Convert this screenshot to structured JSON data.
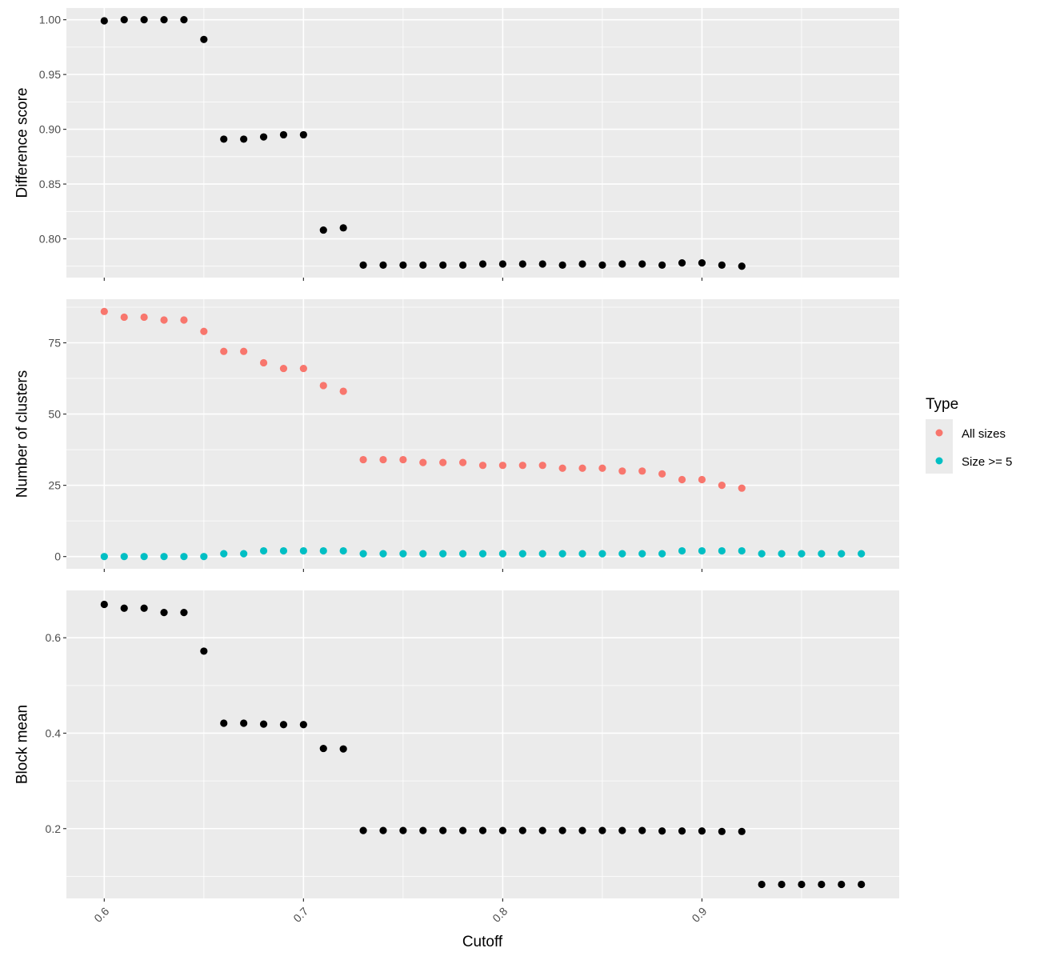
{
  "chart_data": {
    "type": "scatter",
    "xlabel": "Cutoff",
    "x_ticks": [
      "0.6",
      "0.7",
      "0.8",
      "0.9"
    ],
    "legend": {
      "title": "Type",
      "placement": "right",
      "entries": [
        {
          "label": "All sizes",
          "color": "#F8766D"
        },
        {
          "label": "Size >= 5",
          "color": "#00BFC4"
        }
      ]
    },
    "panels": [
      {
        "ylabel": "Difference score",
        "y_ticks": [
          "0.80",
          "0.85",
          "0.90",
          "0.95",
          "1.00"
        ],
        "series": [
          {
            "color": "#000000",
            "x": [
              0.6,
              0.61,
              0.62,
              0.63,
              0.64,
              0.65,
              0.66,
              0.67,
              0.68,
              0.69,
              0.7,
              0.71,
              0.72,
              0.73,
              0.74,
              0.75,
              0.76,
              0.77,
              0.78,
              0.79,
              0.8,
              0.81,
              0.82,
              0.83,
              0.84,
              0.85,
              0.86,
              0.87,
              0.88,
              0.89,
              0.9,
              0.91,
              0.92
            ],
            "y": [
              0.999,
              1.0,
              1.0,
              1.0,
              1.0,
              0.982,
              0.891,
              0.891,
              0.893,
              0.895,
              0.895,
              0.808,
              0.81,
              0.776,
              0.776,
              0.776,
              0.776,
              0.776,
              0.776,
              0.777,
              0.777,
              0.777,
              0.777,
              0.776,
              0.777,
              0.776,
              0.777,
              0.777,
              0.776,
              0.778,
              0.778,
              0.776,
              0.775
            ]
          }
        ]
      },
      {
        "ylabel": "Number of clusters",
        "y_ticks": [
          "0",
          "25",
          "50",
          "75"
        ],
        "series": [
          {
            "name": "All sizes",
            "color": "#F8766D",
            "x": [
              0.6,
              0.61,
              0.62,
              0.63,
              0.64,
              0.65,
              0.66,
              0.67,
              0.68,
              0.69,
              0.7,
              0.71,
              0.72,
              0.73,
              0.74,
              0.75,
              0.76,
              0.77,
              0.78,
              0.79,
              0.8,
              0.81,
              0.82,
              0.83,
              0.84,
              0.85,
              0.86,
              0.87,
              0.88,
              0.89,
              0.9,
              0.91,
              0.92
            ],
            "y": [
              86,
              84,
              84,
              83,
              83,
              79,
              72,
              72,
              68,
              66,
              66,
              60,
              58,
              34,
              34,
              34,
              33,
              33,
              33,
              32,
              32,
              32,
              32,
              31,
              31,
              31,
              30,
              30,
              29,
              27,
              27,
              25,
              24
            ]
          },
          {
            "name": "Size >= 5",
            "color": "#00BFC4",
            "x": [
              0.6,
              0.61,
              0.62,
              0.63,
              0.64,
              0.65,
              0.66,
              0.67,
              0.68,
              0.69,
              0.7,
              0.71,
              0.72,
              0.73,
              0.74,
              0.75,
              0.76,
              0.77,
              0.78,
              0.79,
              0.8,
              0.81,
              0.82,
              0.83,
              0.84,
              0.85,
              0.86,
              0.87,
              0.88,
              0.89,
              0.9,
              0.91,
              0.92,
              0.93,
              0.94,
              0.95,
              0.96,
              0.97,
              0.98
            ],
            "y": [
              0,
              0,
              0,
              0,
              0,
              0,
              1,
              1,
              2,
              2,
              2,
              2,
              2,
              1,
              1,
              1,
              1,
              1,
              1,
              1,
              1,
              1,
              1,
              1,
              1,
              1,
              1,
              1,
              1,
              2,
              2,
              2,
              2,
              1,
              1,
              1,
              1,
              1,
              1
            ]
          }
        ]
      },
      {
        "ylabel": "Block mean",
        "y_ticks": [
          "0.2",
          "0.4",
          "0.6"
        ],
        "series": [
          {
            "color": "#000000",
            "x": [
              0.6,
              0.61,
              0.62,
              0.63,
              0.64,
              0.65,
              0.66,
              0.67,
              0.68,
              0.69,
              0.7,
              0.71,
              0.72,
              0.73,
              0.74,
              0.75,
              0.76,
              0.77,
              0.78,
              0.79,
              0.8,
              0.81,
              0.82,
              0.83,
              0.84,
              0.85,
              0.86,
              0.87,
              0.88,
              0.89,
              0.9,
              0.91,
              0.92,
              0.93,
              0.94,
              0.95,
              0.96,
              0.97,
              0.98
            ],
            "y": [
              0.67,
              0.662,
              0.662,
              0.653,
              0.653,
              0.572,
              0.421,
              0.421,
              0.419,
              0.418,
              0.418,
              0.368,
              0.367,
              0.196,
              0.196,
              0.196,
              0.196,
              0.196,
              0.196,
              0.196,
              0.196,
              0.196,
              0.196,
              0.196,
              0.196,
              0.196,
              0.196,
              0.196,
              0.195,
              0.195,
              0.195,
              0.194,
              0.194,
              0.083,
              0.083,
              0.083,
              0.083,
              0.083,
              0.083
            ]
          }
        ]
      }
    ]
  }
}
